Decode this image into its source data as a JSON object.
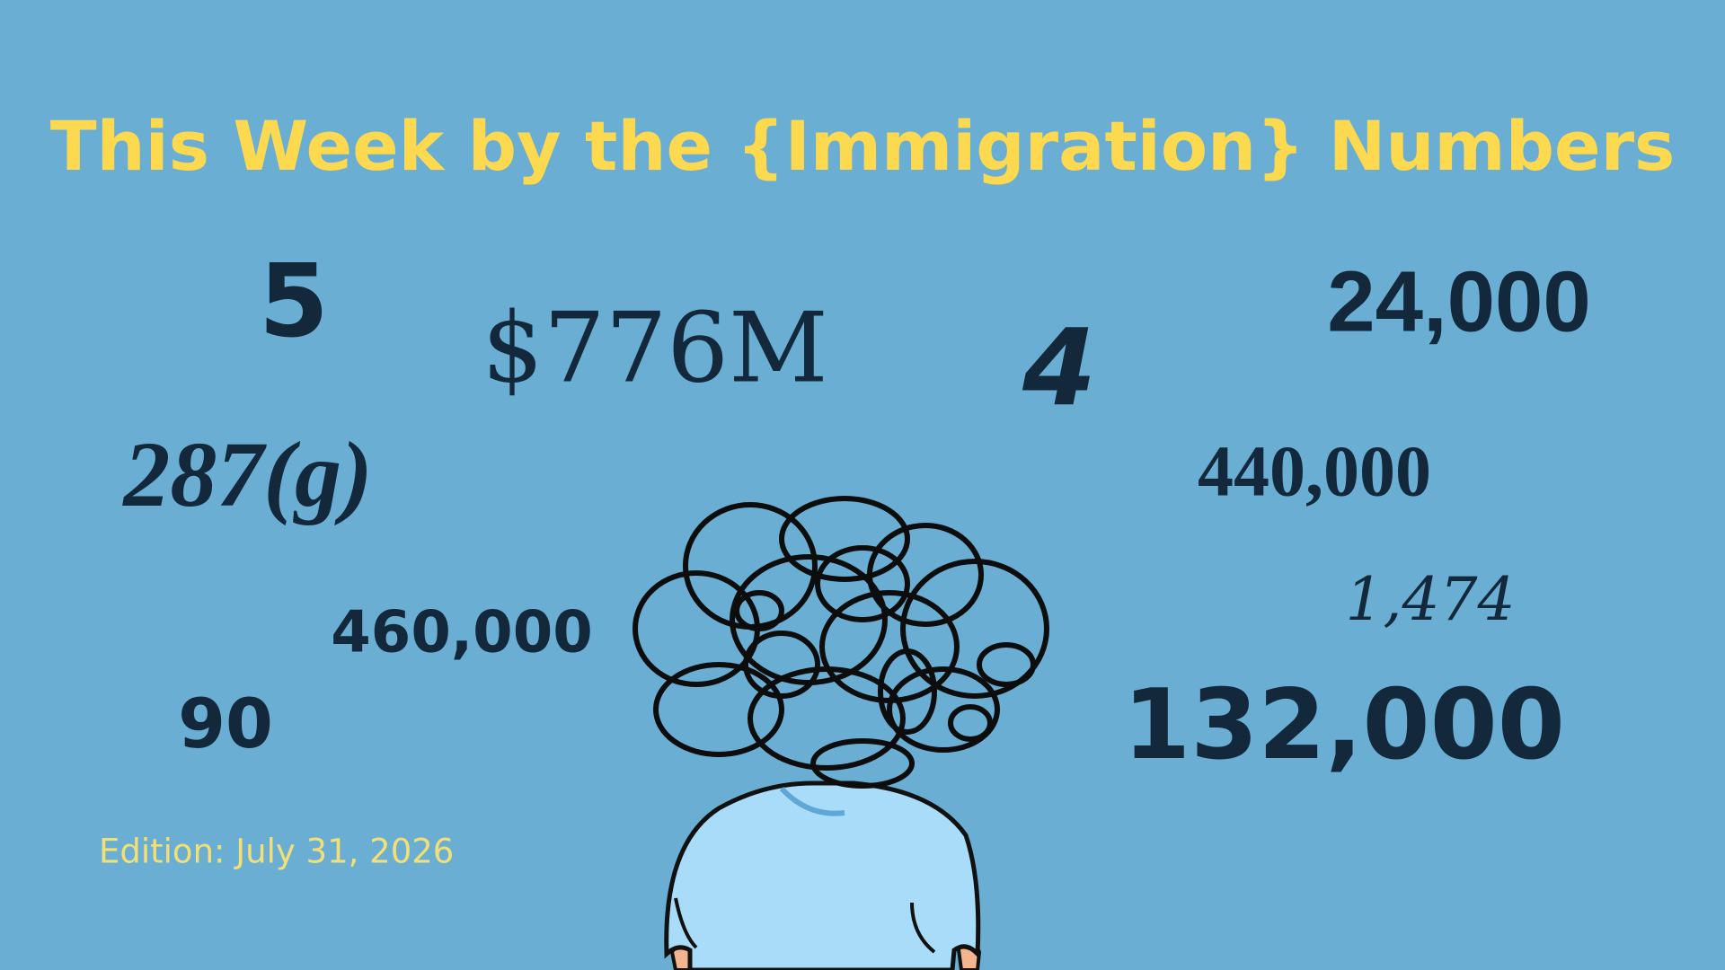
{
  "title": "This Week by the {Immigration} Numbers",
  "figures": [
    "5",
    "$776M",
    "4",
    "24,000",
    "287(g)",
    "440,000",
    "1,474",
    "460,000",
    "90",
    "132,000"
  ],
  "edition": "Edition: July 31, 2026"
}
